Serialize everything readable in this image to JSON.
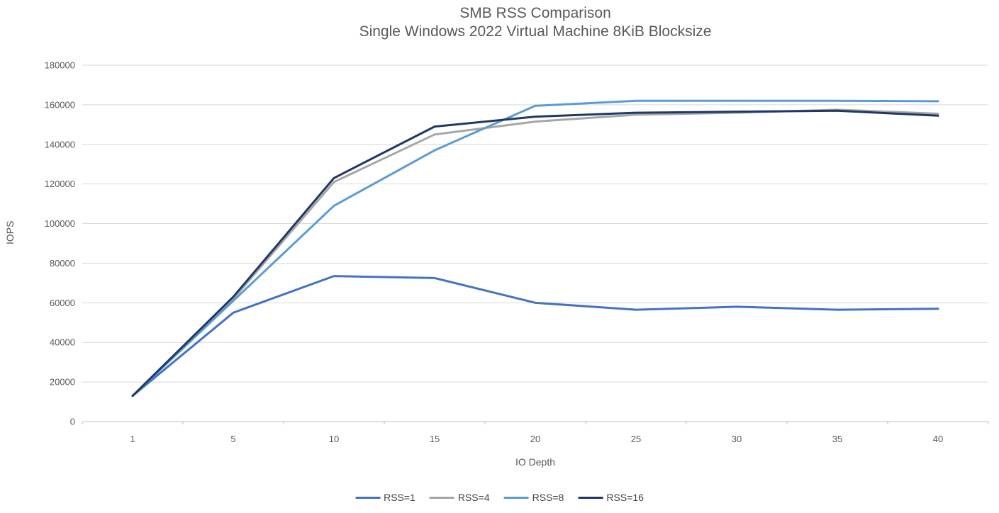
{
  "chart_data": {
    "type": "line",
    "title": "SMB RSS Comparison",
    "subtitle": "Single Windows 2022 Virtual Machine 8KiB Blocksize",
    "xlabel": "IO Depth",
    "ylabel": "IOPS",
    "categories": [
      "1",
      "5",
      "10",
      "15",
      "20",
      "25",
      "30",
      "35",
      "40"
    ],
    "ylim": [
      0,
      180000
    ],
    "ytick_step": 20000,
    "ytick_labels": [
      "0",
      "20000",
      "40000",
      "60000",
      "80000",
      "100000",
      "120000",
      "140000",
      "160000",
      "180000"
    ],
    "grid": true,
    "legend_position": "bottom-center",
    "colors": {
      "grid": "#D9D9D9",
      "axis": "#BFBFBF",
      "tick_label": "#595959",
      "title_text": "#595959",
      "legend_text": "#404040"
    },
    "series": [
      {
        "name": "RSS=1",
        "color": "#4472C4",
        "values": [
          13000,
          55000,
          73500,
          72500,
          60000,
          56500,
          58000,
          56500,
          57000
        ]
      },
      {
        "name": "RSS=4",
        "color": "#A6A6A6",
        "values": [
          13000,
          62000,
          121000,
          145000,
          151500,
          155000,
          156000,
          157500,
          155500
        ]
      },
      {
        "name": "RSS=8",
        "color": "#5B9BD5",
        "values": [
          13000,
          61000,
          109000,
          137000,
          159500,
          162000,
          162000,
          162000,
          161800
        ]
      },
      {
        "name": "RSS=16",
        "color": "#203864",
        "values": [
          13000,
          63000,
          123000,
          149000,
          154000,
          156000,
          156500,
          157000,
          154500
        ]
      }
    ]
  }
}
